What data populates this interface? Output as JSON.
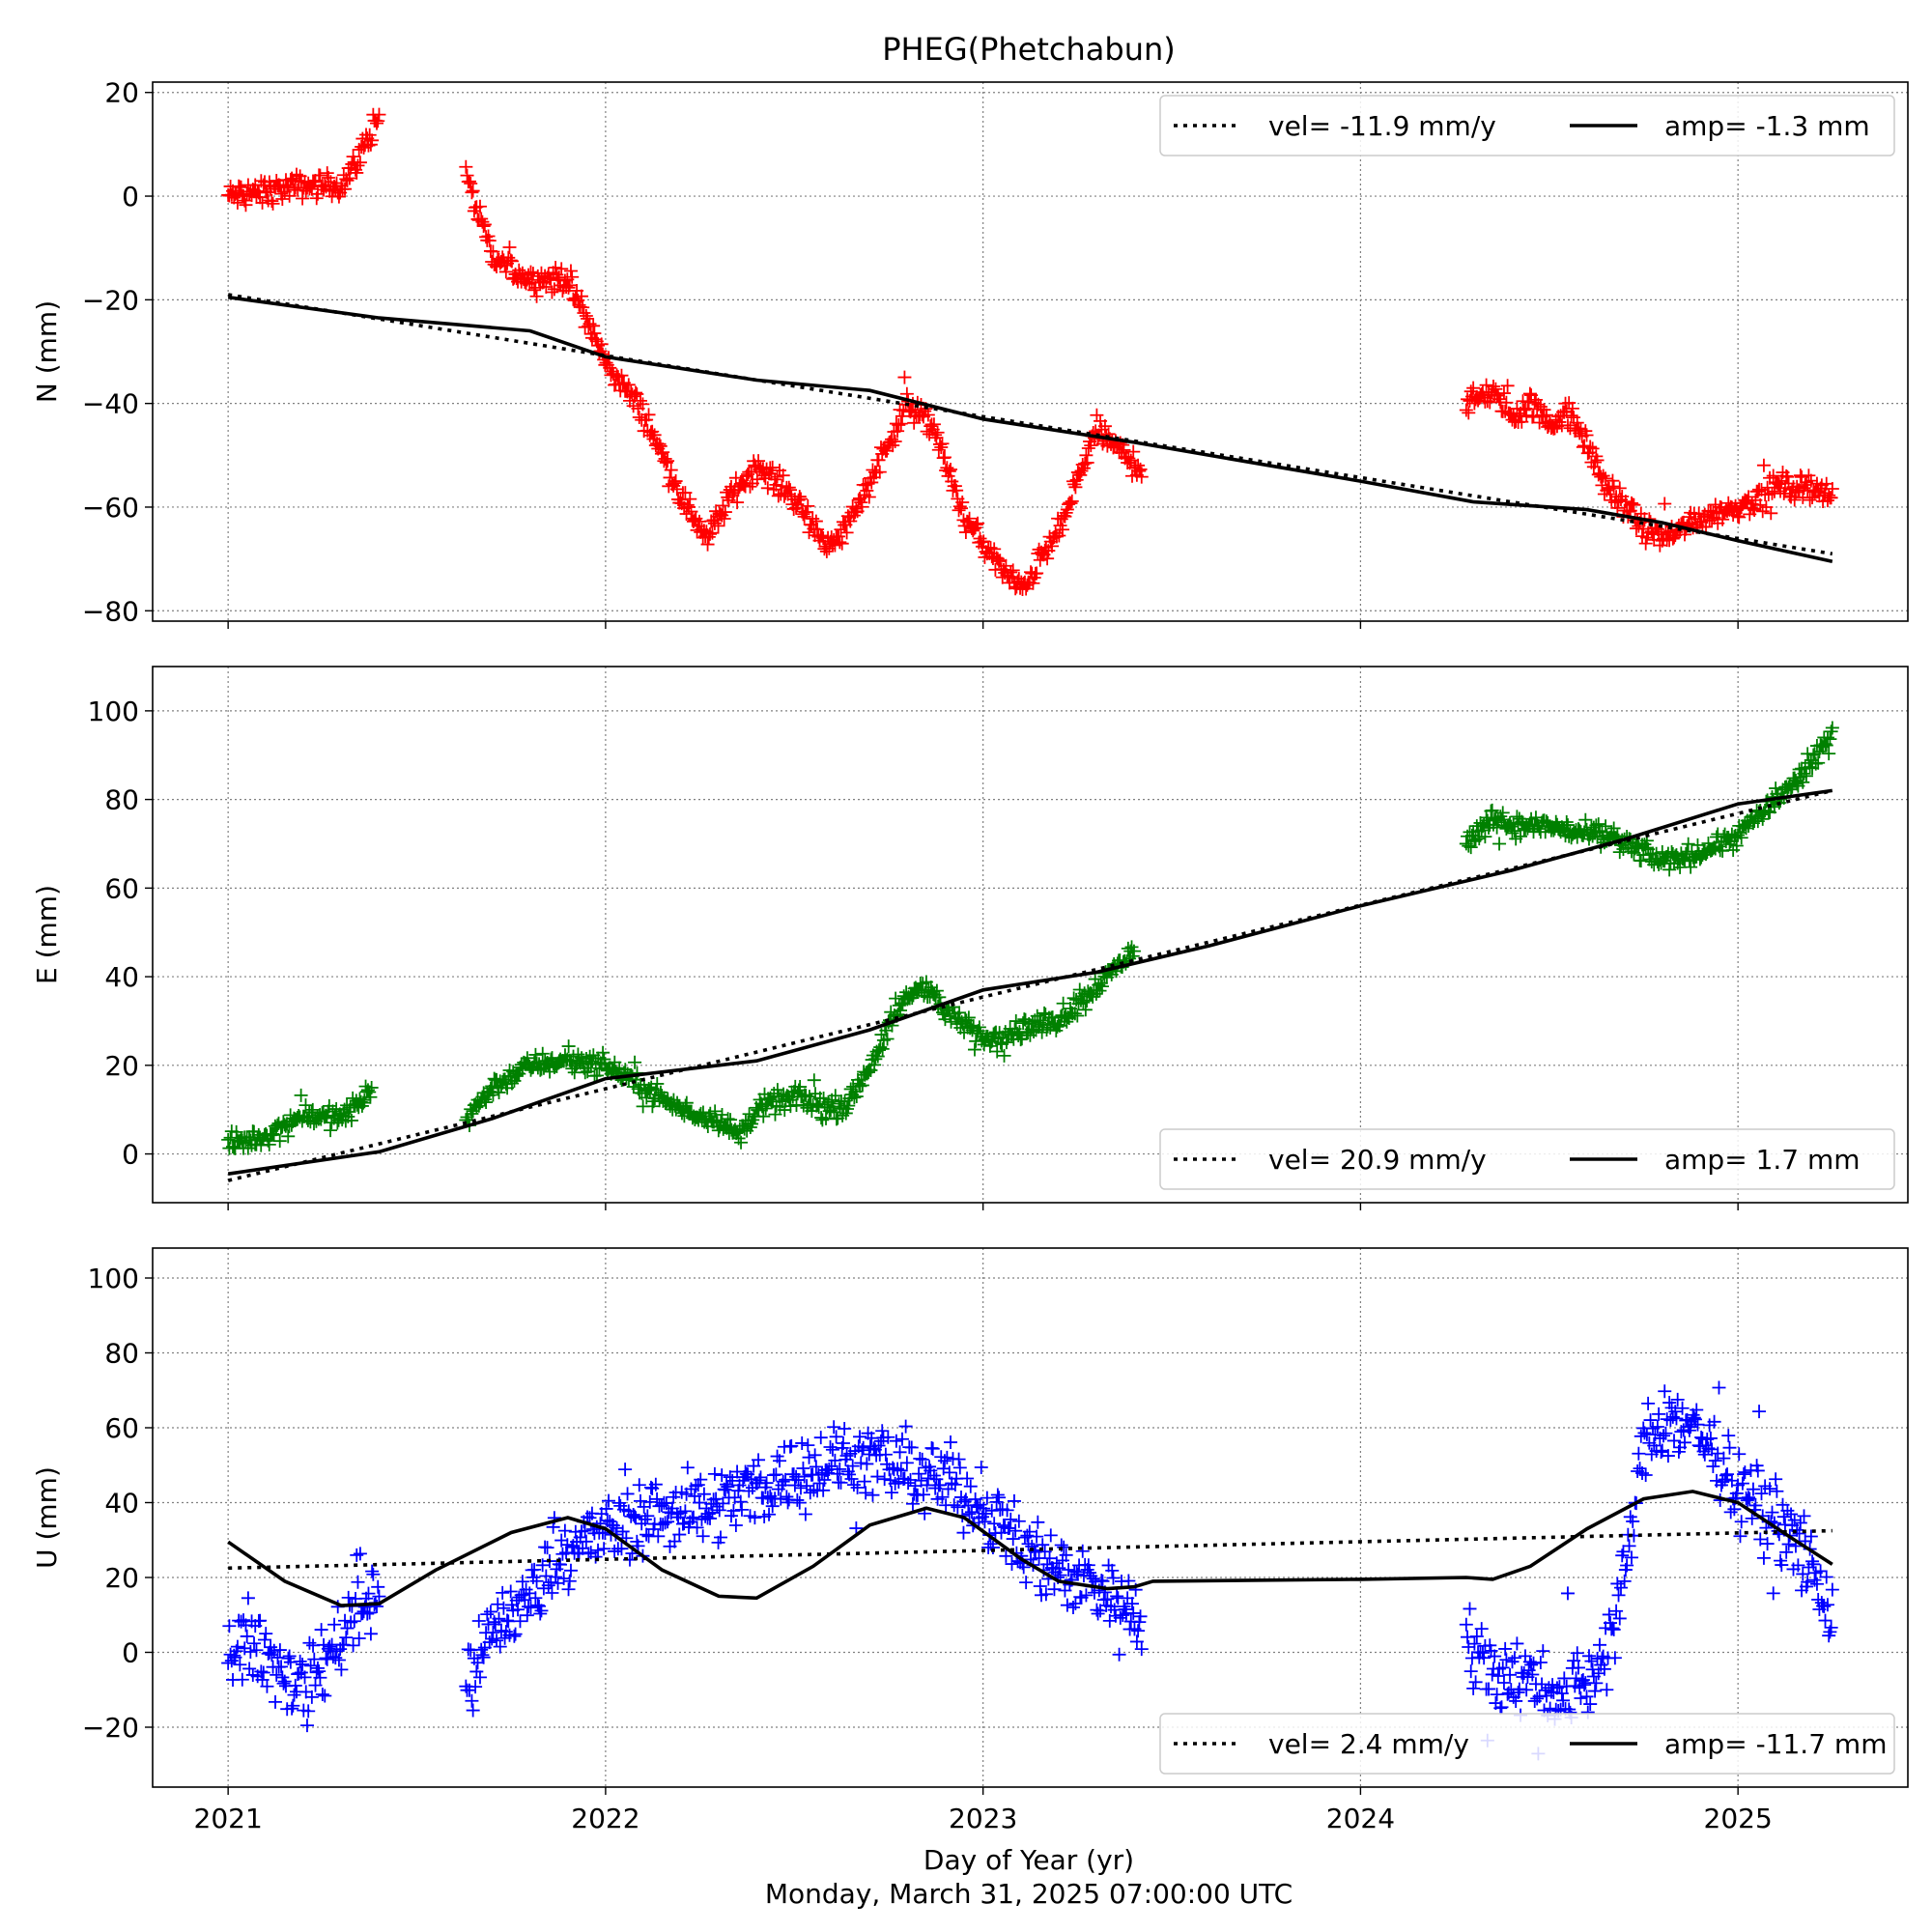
{
  "title": "PHEG(Phetchabun)",
  "xlabel": "Day of Year (yr)",
  "timestamp": "Monday, March 31, 2025 07:00:00 UTC",
  "x_ticks": [
    "2021",
    "2022",
    "2023",
    "2024",
    "2025"
  ],
  "chart_data": [
    {
      "type": "scatter",
      "panel": "N",
      "ylabel": "N (mm)",
      "color": "#ff0000",
      "marker": "plus",
      "xlim": [
        2020.8,
        2025.45
      ],
      "ylim": [
        -82,
        22
      ],
      "yticks": [
        20,
        0,
        -20,
        -40,
        -60,
        -80
      ],
      "grid": true,
      "legend": {
        "position": "top-right",
        "entries": [
          {
            "style": "dotted",
            "label": "vel= -11.9 mm/y"
          },
          {
            "style": "solid",
            "label": "amp= -1.3 mm"
          }
        ]
      },
      "data_segments": [
        {
          "x": [
            2021.0,
            2021.1,
            2021.2,
            2021.3,
            2021.35,
            2021.4
          ],
          "y": [
            0,
            1,
            2,
            2,
            8,
            16
          ]
        },
        {
          "x": [
            2021.63,
            2021.7,
            2021.8,
            2021.9,
            2022.0,
            2022.1,
            2022.2,
            2022.27,
            2022.33,
            2022.4,
            2022.5,
            2022.55,
            2022.6,
            2022.65,
            2022.7,
            2022.8,
            2022.87,
            2022.95,
            2023.05,
            2023.1,
            2023.2,
            2023.3,
            2023.42
          ],
          "y": [
            4,
            -12,
            -16,
            -16,
            -32,
            -42,
            -58,
            -66,
            -58,
            -52,
            -58,
            -64,
            -68,
            -62,
            -55,
            -40,
            -45,
            -62,
            -72,
            -76,
            -65,
            -45,
            -53
          ]
        },
        {
          "x": [
            2024.28,
            2024.35,
            2024.4,
            2024.45,
            2024.5,
            2024.55,
            2024.6,
            2024.65,
            2024.7,
            2024.75,
            2024.8,
            2024.9,
            2025.0,
            2025.1,
            2025.2,
            2025.25
          ],
          "y": [
            -40,
            -38,
            -42,
            -40,
            -44,
            -42,
            -48,
            -56,
            -60,
            -64,
            -66,
            -62,
            -60,
            -56,
            -56,
            -58
          ]
        }
      ],
      "velocity_fit": {
        "x": [
          2021.0,
          2025.25
        ],
        "y": [
          -19,
          -69
        ]
      },
      "seasonal_fit": {
        "x": [
          2021.0,
          2021.4,
          2021.8,
          2022.0,
          2022.4,
          2022.7,
          2023.0,
          2023.4,
          2024.0,
          2024.3,
          2024.6,
          2024.8,
          2025.0,
          2025.25
        ],
        "y": [
          -19.5,
          -23.5,
          -26,
          -31,
          -35.5,
          -37.5,
          -43,
          -47.5,
          -55,
          -59,
          -60.5,
          -63,
          -66.5,
          -70.5
        ]
      }
    },
    {
      "type": "scatter",
      "panel": "E",
      "ylabel": "E (mm)",
      "color": "#008000",
      "marker": "plus",
      "xlim": [
        2020.8,
        2025.45
      ],
      "ylim": [
        -11,
        110
      ],
      "yticks": [
        100,
        80,
        60,
        40,
        20,
        0
      ],
      "grid": true,
      "legend": {
        "position": "bottom-right",
        "entries": [
          {
            "style": "dotted",
            "label": "vel= 20.9 mm/y"
          },
          {
            "style": "solid",
            "label": "amp= 1.7 mm"
          }
        ]
      },
      "data_segments": [
        {
          "x": [
            2021.0,
            2021.1,
            2021.2,
            2021.3,
            2021.38
          ],
          "y": [
            2,
            4,
            9,
            8,
            14
          ]
        },
        {
          "x": [
            2021.63,
            2021.7,
            2021.8,
            2021.9,
            2022.0,
            2022.1,
            2022.2,
            2022.3,
            2022.35,
            2022.4,
            2022.5,
            2022.6,
            2022.65,
            2022.7,
            2022.8,
            2022.85,
            2022.9,
            2023.0,
            2023.1,
            2023.2,
            2023.3,
            2023.4
          ],
          "y": [
            8,
            15,
            20,
            21,
            20,
            15,
            10,
            8,
            4,
            10,
            13,
            10,
            12,
            20,
            36,
            38,
            32,
            26,
            28,
            30,
            38,
            46
          ]
        },
        {
          "x": [
            2024.28,
            2024.35,
            2024.4,
            2024.5,
            2024.6,
            2024.65,
            2024.7,
            2024.8,
            2024.9,
            2025.0,
            2025.1,
            2025.2,
            2025.25
          ],
          "y": [
            70,
            76,
            74,
            74,
            72,
            72,
            70,
            66,
            68,
            72,
            80,
            88,
            96
          ]
        }
      ],
      "velocity_fit": {
        "x": [
          2021.0,
          2025.25
        ],
        "y": [
          -6,
          82
        ]
      },
      "seasonal_fit": {
        "x": [
          2021.0,
          2021.4,
          2021.7,
          2022.0,
          2022.4,
          2022.7,
          2023.0,
          2023.3,
          2023.6,
          2024.0,
          2024.4,
          2024.7,
          2025.0,
          2025.25
        ],
        "y": [
          -4.5,
          0.5,
          8,
          17,
          21,
          28,
          37,
          41,
          47,
          56,
          64,
          71,
          79,
          82
        ]
      }
    },
    {
      "type": "scatter",
      "panel": "U",
      "ylabel": "U (mm)",
      "color": "#0000ff",
      "marker": "plus",
      "xlim": [
        2020.8,
        2025.45
      ],
      "ylim": [
        -36,
        108
      ],
      "yticks": [
        100,
        80,
        60,
        40,
        20,
        0,
        -20
      ],
      "grid": true,
      "legend": {
        "position": "bottom-right",
        "entries": [
          {
            "style": "dotted",
            "label": "vel= 2.4 mm/y"
          },
          {
            "style": "solid",
            "label": "amp= -11.7 mm"
          }
        ]
      },
      "data_segments": [
        {
          "x": [
            2021.0,
            2021.08,
            2021.15,
            2021.2,
            2021.27,
            2021.33,
            2021.4
          ],
          "y": [
            4,
            2,
            -6,
            -10,
            0,
            10,
            18
          ]
        },
        {
          "x": [
            2021.63,
            2021.7,
            2021.8,
            2021.9,
            2022.0,
            2022.1,
            2022.2,
            2022.3,
            2022.4,
            2022.5,
            2022.6,
            2022.7,
            2022.8,
            2022.9,
            2023.0,
            2023.1,
            2023.2,
            2023.3,
            2023.42
          ],
          "y": [
            -12,
            6,
            14,
            28,
            32,
            36,
            38,
            40,
            44,
            48,
            50,
            52,
            48,
            46,
            40,
            28,
            22,
            18,
            10
          ]
        },
        {
          "x": [
            2024.28,
            2024.35,
            2024.4,
            2024.45,
            2024.5,
            2024.55,
            2024.6,
            2024.65,
            2024.7,
            2024.75,
            2024.8,
            2024.85,
            2024.9,
            2024.95,
            2025.0,
            2025.1,
            2025.2,
            2025.25
          ],
          "y": [
            2,
            -4,
            -6,
            -8,
            -10,
            -10,
            -8,
            0,
            20,
            56,
            60,
            62,
            58,
            52,
            44,
            36,
            22,
            8
          ]
        }
      ],
      "velocity_fit": {
        "x": [
          2021.0,
          2025.25
        ],
        "y": [
          22.5,
          32.5
        ]
      },
      "seasonal_fit": {
        "x": [
          2021.0,
          2021.15,
          2021.3,
          2021.4,
          2021.55,
          2021.75,
          2021.9,
          2022.0,
          2022.15,
          2022.3,
          2022.4,
          2022.55,
          2022.7,
          2022.85,
          2022.95,
          2023.1,
          2023.2,
          2023.33,
          2023.4,
          2023.45,
          2024.0,
          2024.28,
          2024.35,
          2024.45,
          2024.6,
          2024.75,
          2024.88,
          2025.0,
          2025.15,
          2025.25
        ],
        "y": [
          29.5,
          19,
          12.5,
          13,
          22,
          32,
          36,
          33,
          22,
          15,
          14.5,
          23,
          34,
          38.5,
          36,
          25,
          19,
          17,
          17.5,
          19,
          19.5,
          20,
          19.5,
          23,
          33,
          41,
          43,
          40,
          30,
          23.5
        ]
      }
    }
  ]
}
